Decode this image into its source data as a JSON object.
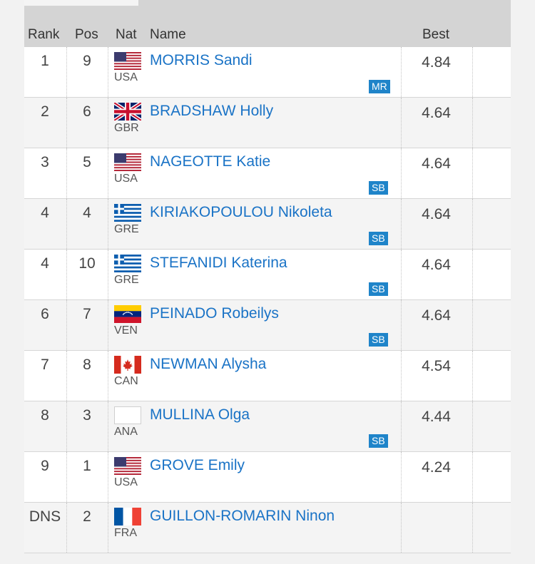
{
  "columns": {
    "rank": "Rank",
    "pos": "Pos",
    "nat": "Nat",
    "name": "Name",
    "best": "Best"
  },
  "colors": {
    "link": "#1a73c6",
    "badge": "#1f84c9",
    "header_bg": "#d4d4d4"
  },
  "rows": [
    {
      "rank": "1",
      "pos": "9",
      "flag": "usa-flag-icon",
      "nat": "USA",
      "name": "MORRIS Sandi",
      "badge": "MR",
      "best": "4.84"
    },
    {
      "rank": "2",
      "pos": "6",
      "flag": "gbr-flag-icon",
      "nat": "GBR",
      "name": "BRADSHAW Holly",
      "badge": "",
      "best": "4.64"
    },
    {
      "rank": "3",
      "pos": "5",
      "flag": "usa-flag-icon",
      "nat": "USA",
      "name": "NAGEOTTE Katie",
      "badge": "SB",
      "best": "4.64"
    },
    {
      "rank": "4",
      "pos": "4",
      "flag": "gre-flag-icon",
      "nat": "GRE",
      "name": "KIRIAKOPOULOU Nikoleta",
      "badge": "SB",
      "best": "4.64"
    },
    {
      "rank": "4",
      "pos": "10",
      "flag": "gre-flag-icon",
      "nat": "GRE",
      "name": "STEFANIDI Katerina",
      "badge": "SB",
      "best": "4.64"
    },
    {
      "rank": "6",
      "pos": "7",
      "flag": "ven-flag-icon",
      "nat": "VEN",
      "name": "PEINADO Robeilys",
      "badge": "SB",
      "best": "4.64"
    },
    {
      "rank": "7",
      "pos": "8",
      "flag": "can-flag-icon",
      "nat": "CAN",
      "name": "NEWMAN Alysha",
      "badge": "",
      "best": "4.54"
    },
    {
      "rank": "8",
      "pos": "3",
      "flag": "blank-flag-icon",
      "nat": "ANA",
      "name": "MULLINA Olga",
      "badge": "SB",
      "best": "4.44"
    },
    {
      "rank": "9",
      "pos": "1",
      "flag": "usa-flag-icon",
      "nat": "USA",
      "name": "GROVE Emily",
      "badge": "",
      "best": "4.24"
    },
    {
      "rank": "DNS",
      "pos": "2",
      "flag": "fra-flag-icon",
      "nat": "FRA",
      "name": "GUILLON-ROMARIN Ninon",
      "badge": "",
      "best": ""
    }
  ]
}
